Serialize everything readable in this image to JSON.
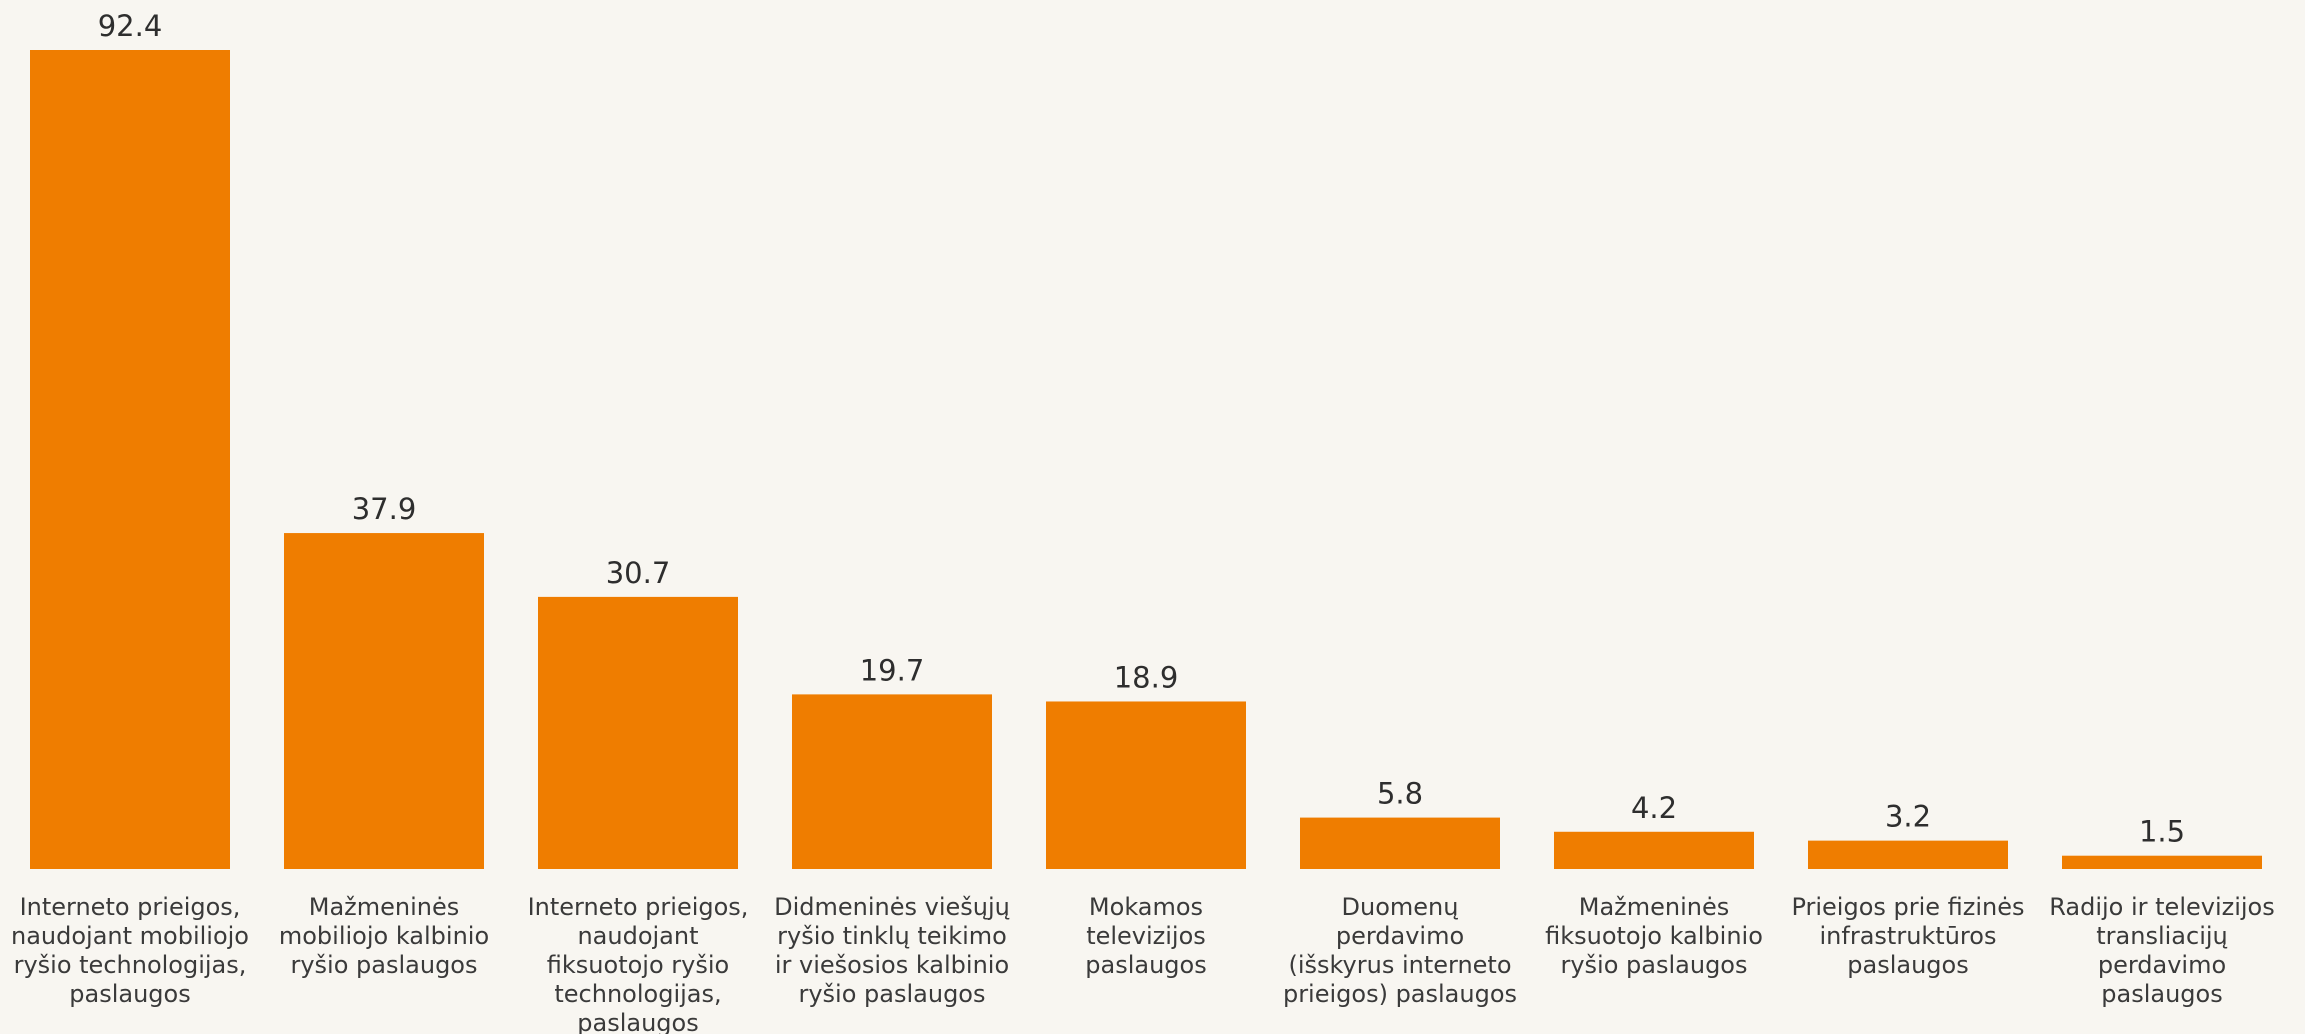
{
  "chart_data": {
    "type": "bar",
    "title": "",
    "xlabel": "",
    "ylabel": "",
    "grid": false,
    "legend": "none",
    "color": "#ef7d00",
    "ylim": [
      0,
      92.4
    ],
    "categories": [
      [
        "Interneto prieigos,",
        "naudojant mobiliojo",
        "ryšio technologijas,",
        "paslaugos"
      ],
      [
        "Mažmeninės",
        "mobiliojo kalbinio",
        "ryšio paslaugos"
      ],
      [
        "Interneto prieigos,",
        "naudojant",
        "fiksuotojo ryšio",
        "technologijas,",
        "paslaugos"
      ],
      [
        "Didmeninės viešųjų",
        "ryšio tinklų teikimo",
        "ir viešosios kalbinio",
        "ryšio paslaugos"
      ],
      [
        "Mokamos",
        "televizijos",
        "paslaugos"
      ],
      [
        "Duomenų",
        "perdavimo",
        "(išskyrus interneto",
        "prieigos) paslaugos"
      ],
      [
        "Mažmeninės",
        "fiksuotojo kalbinio",
        "ryšio paslaugos"
      ],
      [
        "Prieigos prie fizinės",
        "infrastruktūros",
        "paslaugos"
      ],
      [
        "Radijo ir televizijos",
        "transliacijų",
        "perdavimo",
        "paslaugos"
      ]
    ],
    "values": [
      92.4,
      37.9,
      30.7,
      19.7,
      18.9,
      5.8,
      4.2,
      3.2,
      1.5
    ],
    "value_labels": [
      "92.4",
      "37.9",
      "30.7",
      "19.7",
      "18.9",
      "5.8",
      "4.2",
      "3.2",
      "1.5"
    ]
  }
}
